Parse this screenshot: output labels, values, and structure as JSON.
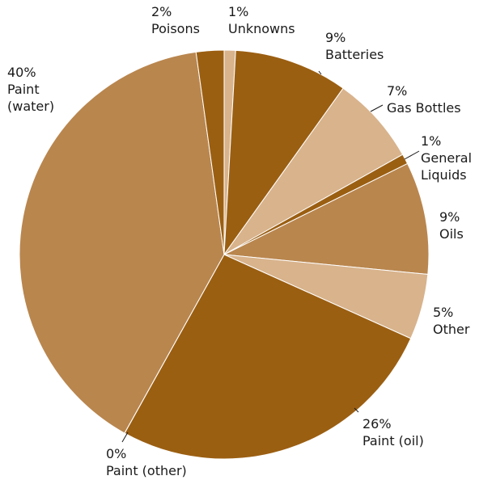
{
  "chart_data": {
    "type": "pie",
    "title": "",
    "slices": [
      {
        "label": "Unknowns",
        "percent_label": "1%",
        "value": 0.9,
        "color": "#d8b38c"
      },
      {
        "label": "Batteries",
        "percent_label": "9%",
        "value": 9,
        "color": "#9b5f12"
      },
      {
        "label": "Gas Bottles",
        "percent_label": "7%",
        "value": 7,
        "color": "#d8b38c"
      },
      {
        "label": "General Liquids",
        "percent_label": "1%",
        "value": 0.8,
        "color": "#9b5f12"
      },
      {
        "label": "Oils",
        "percent_label": "9%",
        "value": 8.9,
        "color": "#b9864e"
      },
      {
        "label": "Other",
        "percent_label": "5%",
        "value": 5.2,
        "color": "#d8b38c"
      },
      {
        "label": "Paint (oil)",
        "percent_label": "26%",
        "value": 26.4,
        "color": "#9b5f12"
      },
      {
        "label": "Paint (other)",
        "percent_label": "0%",
        "value": 0.01,
        "color": "#d8b38c"
      },
      {
        "label": "Paint (water)",
        "percent_label": "40%",
        "value": 39.8,
        "color": "#b9864e"
      },
      {
        "label": "Poisons",
        "percent_label": "2%",
        "value": 2.2,
        "color": "#9b5f12"
      }
    ],
    "legend": "none"
  }
}
